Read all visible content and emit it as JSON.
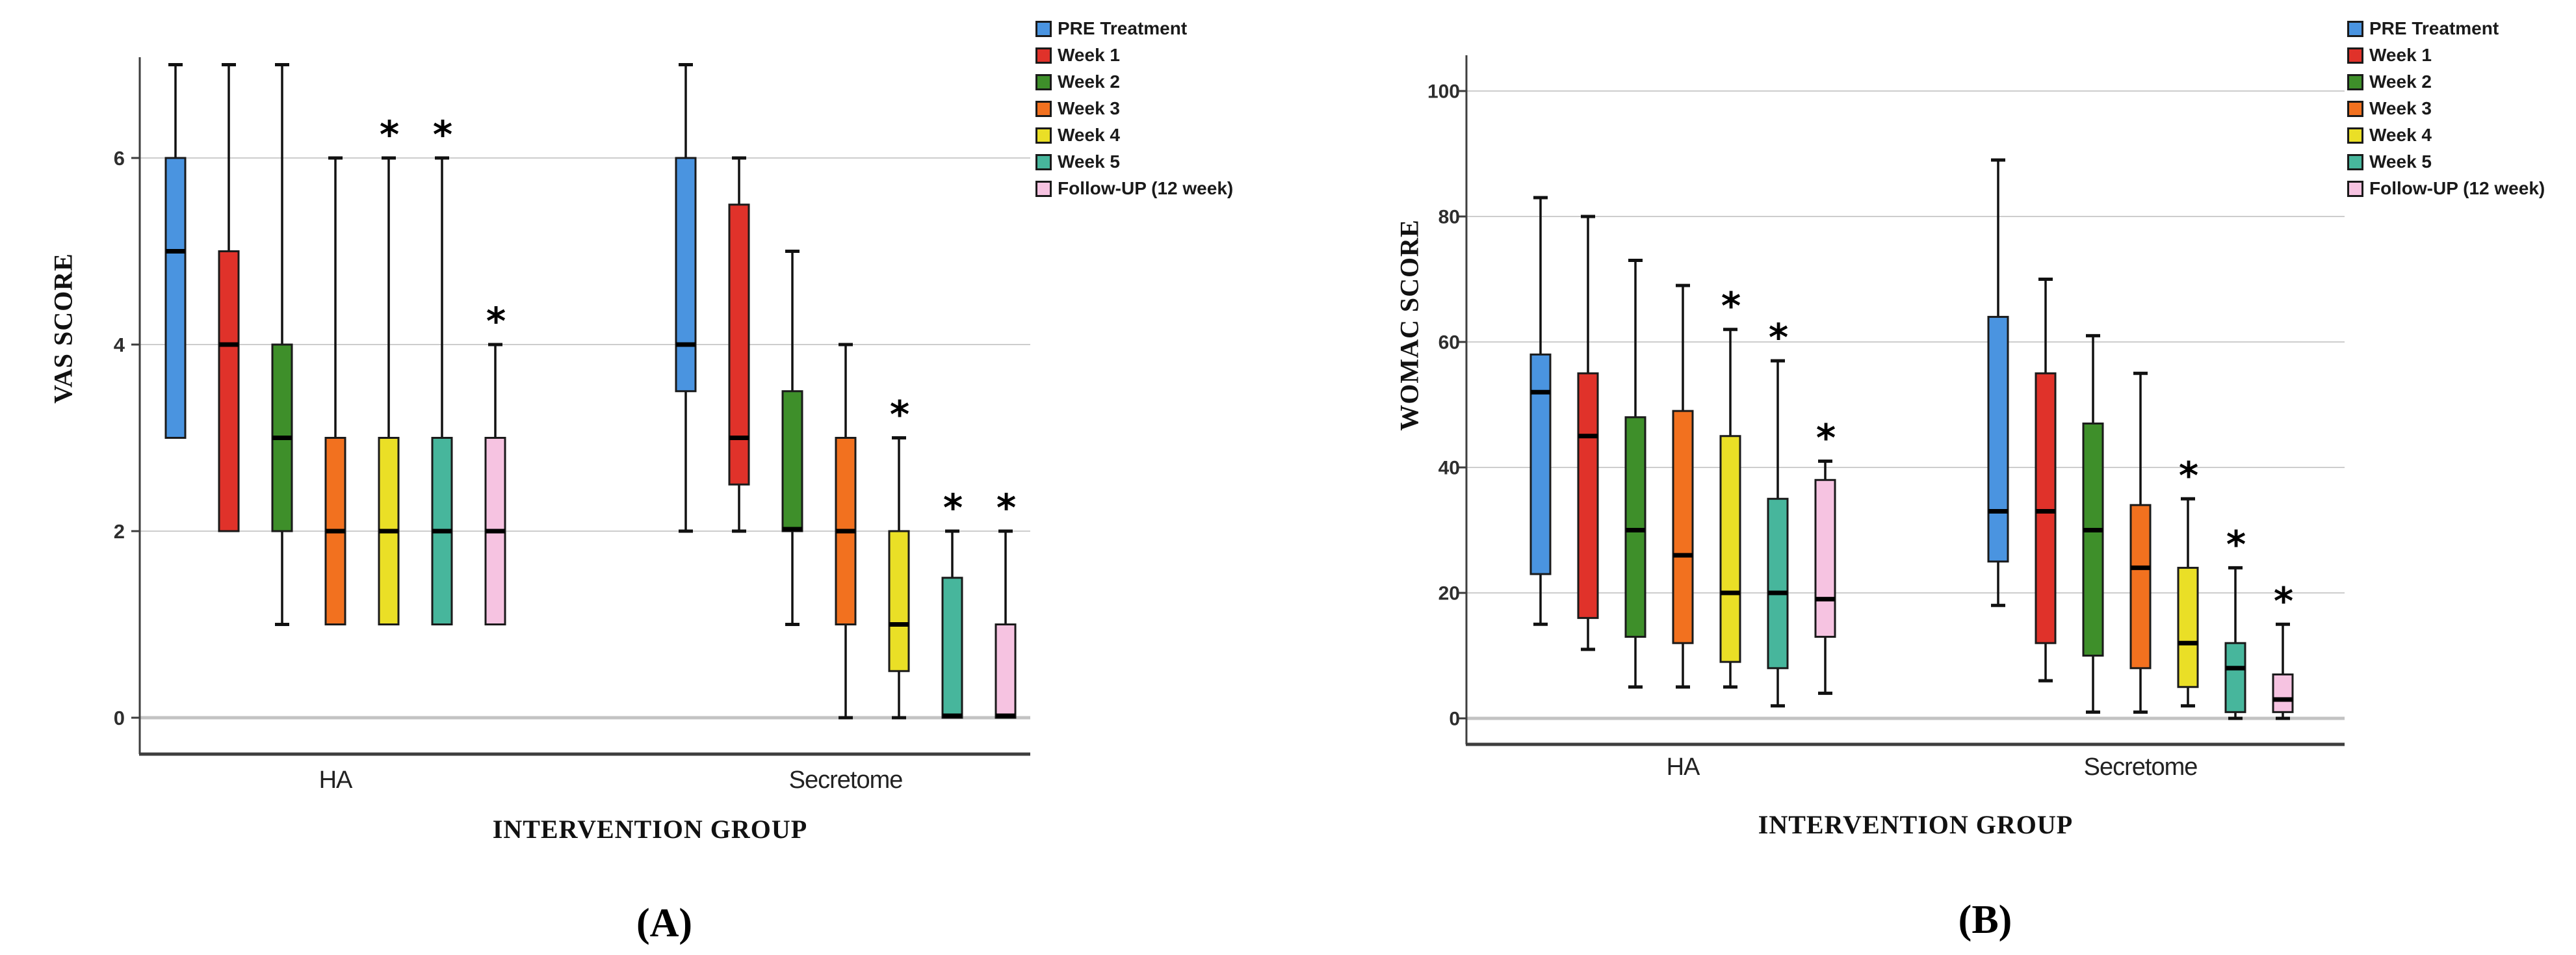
{
  "figure": {
    "panelA_caption": "(A)",
    "panelB_caption": "(B)"
  },
  "chart_data": [
    {
      "type": "boxplot",
      "panel": "A",
      "caption": "(A)",
      "ylabel": "VAS SCORE",
      "xlabel": "INTERVENTION GROUP",
      "ylim": [
        0,
        7.2
      ],
      "yticks": [
        0,
        2,
        4,
        6
      ],
      "grid": "horizontal",
      "legend_position": "top-right",
      "significance_marker": "*",
      "groups": [
        "HA",
        "Secretome"
      ],
      "series": [
        "PRE Treatment",
        "Week 1",
        "Week 2",
        "Week 3",
        "Week 4",
        "Week 5",
        "Follow-UP (12 week)"
      ],
      "series_colors": [
        "#4A94E0",
        "#E0322A",
        "#3E8F2A",
        "#F2711F",
        "#EADF26",
        "#47B69C",
        "#F6C3E1"
      ],
      "boxes": [
        {
          "group": "HA",
          "stats": [
            {
              "series": "PRE Treatment",
              "min": 3,
              "q1": 3,
              "median": 5,
              "q3": 6,
              "max": 7,
              "sig": false
            },
            {
              "series": "Week 1",
              "min": 2,
              "q1": 2,
              "median": 4,
              "q3": 5,
              "max": 7,
              "sig": false
            },
            {
              "series": "Week 2",
              "min": 1,
              "q1": 2,
              "median": 3,
              "q3": 4,
              "max": 7,
              "sig": false
            },
            {
              "series": "Week 3",
              "min": 1,
              "q1": 1,
              "median": 2,
              "q3": 3,
              "max": 6,
              "sig": false
            },
            {
              "series": "Week 4",
              "min": 1,
              "q1": 1,
              "median": 2,
              "q3": 3,
              "max": 6,
              "sig": true
            },
            {
              "series": "Week 5",
              "min": 1,
              "q1": 1,
              "median": 2,
              "q3": 3,
              "max": 6,
              "sig": true
            },
            {
              "series": "Follow-UP (12 week)",
              "min": 1,
              "q1": 1,
              "median": 2,
              "q3": 3,
              "max": 4,
              "sig": true
            }
          ]
        },
        {
          "group": "Secretome",
          "stats": [
            {
              "series": "PRE Treatment",
              "min": 2,
              "q1": 3.5,
              "median": 4,
              "q3": 6,
              "max": 7,
              "sig": false
            },
            {
              "series": "Week 1",
              "min": 2,
              "q1": 2.5,
              "median": 3,
              "q3": 5.5,
              "max": 6,
              "sig": false
            },
            {
              "series": "Week 2",
              "min": 1,
              "q1": 2,
              "median": 2,
              "q3": 3.5,
              "max": 5,
              "sig": false
            },
            {
              "series": "Week 3",
              "min": 0,
              "q1": 1,
              "median": 2,
              "q3": 3,
              "max": 4,
              "sig": false
            },
            {
              "series": "Week 4",
              "min": 0,
              "q1": 0.5,
              "median": 1,
              "q3": 2,
              "max": 3,
              "sig": true
            },
            {
              "series": "Week 5",
              "min": 0,
              "q1": 0,
              "median": 0,
              "q3": 1.5,
              "max": 2,
              "sig": true
            },
            {
              "series": "Follow-UP (12 week)",
              "min": 0,
              "q1": 0,
              "median": 0,
              "q3": 1,
              "max": 2,
              "sig": true
            }
          ]
        }
      ]
    },
    {
      "type": "boxplot",
      "panel": "B",
      "caption": "(B)",
      "ylabel": "WOMAC SCORE",
      "xlabel": "INTERVENTION GROUP",
      "ylim": [
        0,
        105
      ],
      "yticks": [
        0,
        20,
        40,
        60,
        80,
        100
      ],
      "grid": "horizontal",
      "legend_position": "top-right",
      "significance_marker": "*",
      "groups": [
        "HA",
        "Secretome"
      ],
      "series": [
        "PRE Treatment",
        "Week 1",
        "Week 2",
        "Week 3",
        "Week 4",
        "Week 5",
        "Follow-UP (12 week)"
      ],
      "series_colors": [
        "#4A94E0",
        "#E0322A",
        "#3E8F2A",
        "#F2711F",
        "#EADF26",
        "#47B69C",
        "#F6C3E1"
      ],
      "boxes": [
        {
          "group": "HA",
          "stats": [
            {
              "series": "PRE Treatment",
              "min": 15,
              "q1": 23,
              "median": 52,
              "q3": 58,
              "max": 83,
              "sig": false
            },
            {
              "series": "Week 1",
              "min": 11,
              "q1": 16,
              "median": 45,
              "q3": 55,
              "max": 80,
              "sig": false
            },
            {
              "series": "Week 2",
              "min": 5,
              "q1": 13,
              "median": 30,
              "q3": 48,
              "max": 73,
              "sig": false
            },
            {
              "series": "Week 3",
              "min": 5,
              "q1": 12,
              "median": 26,
              "q3": 49,
              "max": 69,
              "sig": false
            },
            {
              "series": "Week 4",
              "min": 5,
              "q1": 9,
              "median": 20,
              "q3": 45,
              "max": 62,
              "sig": true
            },
            {
              "series": "Week 5",
              "min": 2,
              "q1": 8,
              "median": 20,
              "q3": 35,
              "max": 57,
              "sig": true
            },
            {
              "series": "Follow-UP (12 week)",
              "min": 4,
              "q1": 13,
              "median": 19,
              "q3": 38,
              "max": 41,
              "sig": true
            }
          ]
        },
        {
          "group": "Secretome",
          "stats": [
            {
              "series": "PRE Treatment",
              "min": 18,
              "q1": 25,
              "median": 33,
              "q3": 64,
              "max": 89,
              "sig": false
            },
            {
              "series": "Week 1",
              "min": 6,
              "q1": 12,
              "median": 33,
              "q3": 55,
              "max": 70,
              "sig": false
            },
            {
              "series": "Week 2",
              "min": 1,
              "q1": 10,
              "median": 30,
              "q3": 47,
              "max": 61,
              "sig": false
            },
            {
              "series": "Week 3",
              "min": 1,
              "q1": 8,
              "median": 24,
              "q3": 34,
              "max": 55,
              "sig": false
            },
            {
              "series": "Week 4",
              "min": 2,
              "q1": 5,
              "median": 12,
              "q3": 24,
              "max": 35,
              "sig": true
            },
            {
              "series": "Week 5",
              "min": 0,
              "q1": 1,
              "median": 8,
              "q3": 12,
              "max": 24,
              "sig": true
            },
            {
              "series": "Follow-UP (12 week)",
              "min": 0,
              "q1": 1,
              "median": 3,
              "q3": 7,
              "max": 15,
              "sig": true
            }
          ]
        }
      ]
    }
  ]
}
